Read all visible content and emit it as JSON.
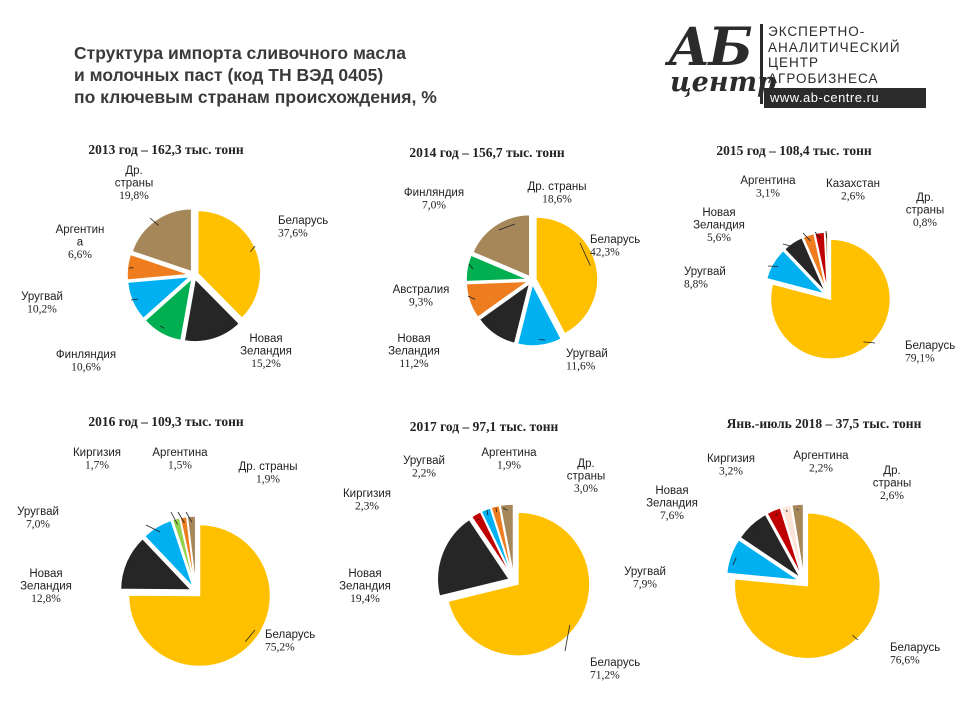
{
  "header": {
    "title_lines": [
      "Структура импорта сливочного масла",
      "и молочных паст (код ТН ВЭД 0405)",
      "по ключевым странам происхождения, %"
    ]
  },
  "logo": {
    "mark_top": "АБ",
    "mark_bottom": "центр",
    "lines": [
      "ЭКСПЕРТНО-",
      "АНАЛИТИЧЕСКИЙ",
      "ЦЕНТР",
      "АГРОБИЗНЕСА"
    ],
    "url": "www.ab-centre.ru"
  },
  "colors": {
    "Беларусь": "#FFC000",
    "Новая Зеландия": "#262626",
    "Уругвай": "#00B0F0",
    "Финляндия": "#00B050",
    "Аргентина": "#ED7D1F",
    "Др. страны": "#A6875A",
    "Австралия": "#ED7D1F",
    "Казахстан": "#C00000",
    "Киргизия": "#C00000",
    "Киргизия_2016": "#92D050",
    "Аргентина_2018": "#FCE4D6"
  },
  "chart_data": [
    {
      "type": "pie",
      "title": "2013 год – 162,3 тыс. тонн",
      "slices": [
        {
          "name": "Беларусь",
          "value": 37.6,
          "label_lines": [
            "Беларусь"
          ],
          "value_label": "37,6%"
        },
        {
          "name": "Новая Зеландия",
          "value": 15.2,
          "label_lines": [
            "Новая",
            "Зеландия"
          ],
          "value_label": "15,2%"
        },
        {
          "name": "Финляндия",
          "value": 10.6,
          "label_lines": [
            "Финляндия"
          ],
          "value_label": "10,6%"
        },
        {
          "name": "Уругвай",
          "value": 10.2,
          "label_lines": [
            "Уругвай"
          ],
          "value_label": "10,2%"
        },
        {
          "name": "Аргентина",
          "value": 6.6,
          "label_lines": [
            "Аргентин",
            "а"
          ],
          "value_label": "6,6%"
        },
        {
          "name": "Др. страны",
          "value": 19.8,
          "label_lines": [
            "Др.",
            "страны"
          ],
          "value_label": "19,8%"
        }
      ]
    },
    {
      "type": "pie",
      "title": "2014 год – 156,7 тыс. тонн",
      "slices": [
        {
          "name": "Беларусь",
          "value": 42.3,
          "label_lines": [
            "Беларусь"
          ],
          "value_label": "42,3%"
        },
        {
          "name": "Уругвай",
          "value": 11.6,
          "label_lines": [
            "Уругвай"
          ],
          "value_label": "11,6%"
        },
        {
          "name": "Новая Зеландия",
          "value": 11.2,
          "label_lines": [
            "Новая",
            "Зеландия"
          ],
          "value_label": "11,2%"
        },
        {
          "name": "Австралия",
          "value": 9.3,
          "label_lines": [
            "Австралия"
          ],
          "value_label": "9,3%"
        },
        {
          "name": "Финляндия",
          "value": 7.0,
          "label_lines": [
            "Финляндия"
          ],
          "value_label": "7,0%"
        },
        {
          "name": "Др. страны",
          "value": 18.6,
          "label_lines": [
            "Др. страны"
          ],
          "value_label": "18,6%"
        }
      ]
    },
    {
      "type": "pie",
      "title": "2015 год – 108,4 тыс. тонн",
      "slices": [
        {
          "name": "Беларусь",
          "value": 79.1,
          "label_lines": [
            "Беларусь"
          ],
          "value_label": "79,1%"
        },
        {
          "name": "Уругвай",
          "value": 8.8,
          "label_lines": [
            "Уругвай"
          ],
          "value_label": "8,8%"
        },
        {
          "name": "Новая Зеландия",
          "value": 5.6,
          "label_lines": [
            "Новая",
            "Зеландия"
          ],
          "value_label": "5,6%"
        },
        {
          "name": "Аргентина",
          "value": 3.1,
          "label_lines": [
            "Аргентина"
          ],
          "value_label": "3,1%"
        },
        {
          "name": "Казахстан",
          "value": 2.6,
          "label_lines": [
            "Казахстан"
          ],
          "value_label": "2,6%"
        },
        {
          "name": "Др. страны",
          "value": 0.8,
          "label_lines": [
            "Др.",
            "страны"
          ],
          "value_label": "0,8%"
        }
      ]
    },
    {
      "type": "pie",
      "title": "2016 год – 109,3 тыс. тонн",
      "slices": [
        {
          "name": "Беларусь",
          "value": 75.2,
          "label_lines": [
            "Беларусь"
          ],
          "value_label": "75,2%"
        },
        {
          "name": "Новая Зеландия",
          "value": 12.8,
          "label_lines": [
            "Новая",
            "Зеландия"
          ],
          "value_label": "12,8%"
        },
        {
          "name": "Уругвай",
          "value": 7.0,
          "label_lines": [
            "Уругвай"
          ],
          "value_label": "7,0%"
        },
        {
          "name": "Киргизия",
          "value": 1.7,
          "label_lines": [
            "Киргизия"
          ],
          "value_label": "1,7%"
        },
        {
          "name": "Аргентина",
          "value": 1.5,
          "label_lines": [
            "Аргентина"
          ],
          "value_label": "1,5%"
        },
        {
          "name": "Др. страны",
          "value": 1.9,
          "label_lines": [
            "Др. страны"
          ],
          "value_label": "1,9%"
        }
      ]
    },
    {
      "type": "pie",
      "title": "2017 год – 97,1 тыс. тонн",
      "slices": [
        {
          "name": "Беларусь",
          "value": 71.2,
          "label_lines": [
            "Беларусь"
          ],
          "value_label": "71,2%"
        },
        {
          "name": "Новая Зеландия",
          "value": 19.4,
          "label_lines": [
            "Новая",
            "Зеландия"
          ],
          "value_label": "19,4%"
        },
        {
          "name": "Киргизия",
          "value": 2.3,
          "label_lines": [
            "Киргизия"
          ],
          "value_label": "2,3%"
        },
        {
          "name": "Уругвай",
          "value": 2.2,
          "label_lines": [
            "Уругвай"
          ],
          "value_label": "2,2%"
        },
        {
          "name": "Аргентина",
          "value": 1.9,
          "label_lines": [
            "Аргентина"
          ],
          "value_label": "1,9%"
        },
        {
          "name": "Др. страны",
          "value": 3.0,
          "label_lines": [
            "Др.",
            "страны"
          ],
          "value_label": "3,0%"
        }
      ]
    },
    {
      "type": "pie",
      "title": "Янв.-июль 2018 – 37,5 тыс. тонн",
      "slices": [
        {
          "name": "Беларусь",
          "value": 76.6,
          "label_lines": [
            "Беларусь"
          ],
          "value_label": "76,6%"
        },
        {
          "name": "Уругвай",
          "value": 7.9,
          "label_lines": [
            "Уругвай"
          ],
          "value_label": "7,9%"
        },
        {
          "name": "Новая Зеландия",
          "value": 7.6,
          "label_lines": [
            "Новая",
            "Зеландия"
          ],
          "value_label": "7,6%"
        },
        {
          "name": "Киргизия",
          "value": 3.2,
          "label_lines": [
            "Киргизия"
          ],
          "value_label": "3,2%"
        },
        {
          "name": "Аргентина",
          "value": 2.2,
          "label_lines": [
            "Аргентина"
          ],
          "value_label": "2,2%"
        },
        {
          "name": "Др. страны",
          "value": 2.6,
          "label_lines": [
            "Др.",
            "страны"
          ],
          "value_label": "2,6%"
        }
      ]
    }
  ]
}
